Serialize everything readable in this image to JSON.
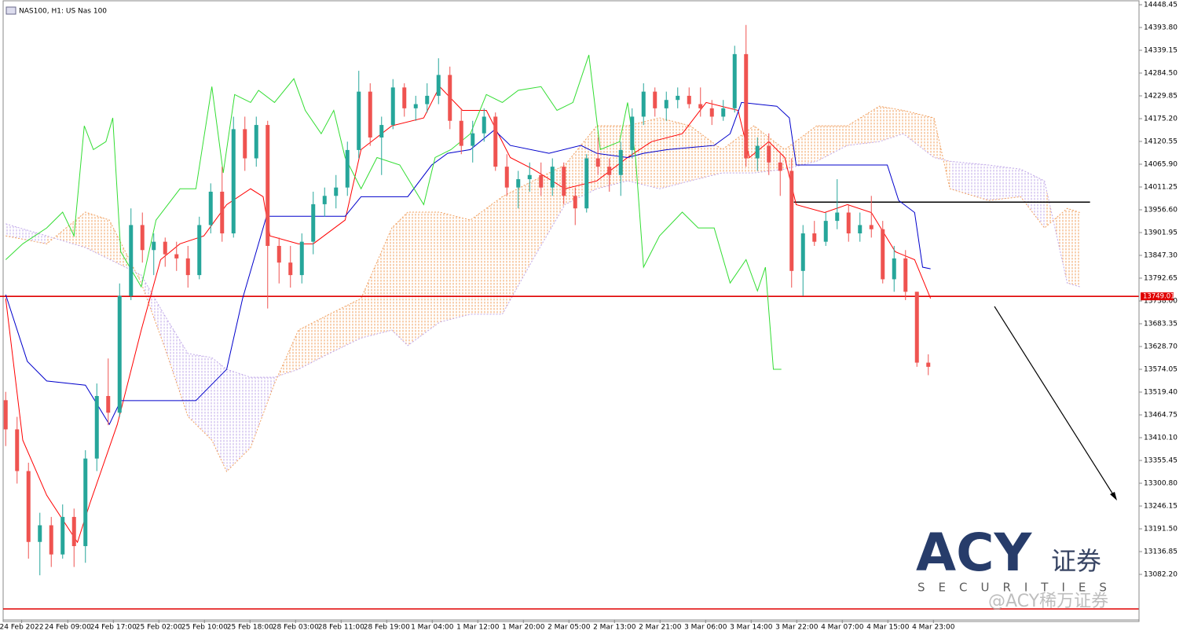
{
  "chart_data": {
    "type": "candlestick",
    "title": "NAS100, H1:  US Nas 100",
    "ylim": [
      13005,
      14448.45
    ],
    "yticks": [
      14448.45,
      {
        "value": 14393.8,
        "label": "14393.80"
      },
      14339.15,
      {
        "value": 14284.5,
        "label": "14284.50"
      },
      14229.85,
      {
        "value": 14175.2,
        "label": "14175.20"
      },
      14120.55,
      {
        "value": 14065.9,
        "label": "14065.90"
      },
      14011.25,
      {
        "value": 13956.6,
        "label": "13956.60"
      },
      13901.95,
      {
        "value": 13847.3,
        "label": "13847.30"
      },
      13792.65,
      {
        "value": 13738,
        "label": "13738.00"
      },
      13683.35,
      {
        "value": 13628.7,
        "label": "13628.70"
      },
      13574.05,
      {
        "value": 13519.4,
        "label": "13519.40"
      },
      13464.75,
      {
        "value": 13410.1,
        "label": "13410.10"
      },
      13355.45,
      {
        "value": 13300.8,
        "label": "13300.80"
      },
      13246.15,
      {
        "value": 13191.5,
        "label": "13191.50"
      },
      13136.85,
      {
        "value": 13082.2,
        "label": "13082.20"
      }
    ],
    "xlim": [
      -0.5,
      99.5
    ],
    "xticks": [
      {
        "value": 1.4,
        "label": "24 Feb 2022"
      },
      {
        "value": 5.45,
        "label": "24 Feb 09:00"
      },
      {
        "value": 9.45,
        "label": "24 Feb 17:00"
      },
      {
        "value": 13.45,
        "label": "25 Feb 02:00"
      },
      {
        "value": 17.45,
        "label": "25 Feb 10:00"
      },
      {
        "value": 21.45,
        "label": "25 Feb 18:00"
      },
      {
        "value": 25.45,
        "label": "28 Feb 03:00"
      },
      {
        "value": 29.45,
        "label": "28 Feb 11:00"
      },
      {
        "value": 33.45,
        "label": "28 Feb 19:00"
      },
      {
        "value": 37.45,
        "label": "1 Mar 04:00"
      },
      {
        "value": 41.45,
        "label": "1 Mar 12:00"
      },
      {
        "value": 45.45,
        "label": "1 Mar 20:00"
      },
      {
        "value": 49.45,
        "label": "2 Mar 05:00"
      },
      {
        "value": 53.45,
        "label": "2 Mar 13:00"
      },
      {
        "value": 57.45,
        "label": "2 Mar 21:00"
      },
      {
        "value": 61.45,
        "label": "3 Mar 06:00"
      },
      {
        "value": 65.45,
        "label": "3 Mar 14:00"
      },
      {
        "value": 69.45,
        "label": "3 Mar 22:00"
      },
      {
        "value": 73.45,
        "label": "4 Mar 07:00"
      },
      {
        "value": 77.45,
        "label": "4 Mar 15:00"
      },
      {
        "value": 81.45,
        "label": "4 Mar 23:00"
      }
    ],
    "up_color": "#26a69a",
    "down_color": "#ef5350",
    "open": [
      13500,
      13430,
      13330,
      13160,
      13200,
      13130,
      13220,
      13150,
      13360,
      13510,
      13470,
      13750,
      13920,
      13860,
      13880,
      13850,
      13840,
      13800,
      13920,
      14000,
      13900,
      14150,
      14080,
      14160,
      13870,
      13830,
      13800,
      13880,
      13970,
      13990,
      14010,
      14100,
      14240,
      14130,
      14160,
      14250,
      14200,
      14210,
      14230,
      14280,
      14170,
      14110,
      14140,
      14180,
      14060,
      14010,
      14030,
      14040,
      14010,
      14060,
      13990,
      13960,
      14080,
      14060,
      14040,
      14100,
      14180,
      14240,
      14200,
      14220,
      14230,
      14210,
      14200,
      14180,
      14200,
      14330,
      14080,
      14110,
      14070,
      14050,
      13810,
      13900,
      13880,
      13930,
      13950,
      13900,
      13920,
      13910,
      13790,
      13840,
      13760,
      13590
    ],
    "high": [
      13520,
      13460,
      13350,
      13230,
      13220,
      13250,
      13240,
      13380,
      13540,
      13600,
      13780,
      13960,
      13950,
      13900,
      13890,
      13880,
      13870,
      13940,
      14020,
      14060,
      14180,
      14180,
      14180,
      14170,
      13890,
      13870,
      13900,
      14000,
      14010,
      14040,
      14120,
      14290,
      14260,
      14180,
      14270,
      14260,
      14230,
      14260,
      14320,
      14300,
      14200,
      14170,
      14200,
      14190,
      14090,
      14050,
      14070,
      14070,
      14080,
      14070,
      14010,
      14090,
      14130,
      14080,
      14120,
      14200,
      14260,
      14250,
      14240,
      14250,
      14250,
      14250,
      14220,
      14220,
      14350,
      14400,
      14130,
      14140,
      14090,
      14080,
      13920,
      13930,
      13950,
      14030,
      13970,
      13950,
      13990,
      13930,
      13870,
      13860,
      13760,
      13610
    ],
    "low": [
      13390,
      13300,
      13120,
      13080,
      13100,
      13120,
      13100,
      13110,
      13330,
      13440,
      13460,
      13740,
      13830,
      13800,
      13820,
      13810,
      13770,
      13790,
      13900,
      13880,
      13890,
      14050,
      14060,
      13720,
      13780,
      13770,
      13780,
      13850,
      13940,
      13960,
      13990,
      14080,
      14110,
      14040,
      14150,
      14180,
      14170,
      14190,
      14210,
      14150,
      14090,
      14070,
      14120,
      14050,
      13990,
      13960,
      14000,
      13990,
      13990,
      13970,
      13920,
      13950,
      14040,
      14000,
      13990,
      14080,
      14160,
      14180,
      14170,
      14200,
      14200,
      14180,
      14160,
      14170,
      14190,
      14060,
      14050,
      14040,
      13990,
      13770,
      13750,
      13870,
      13870,
      13910,
      13880,
      13880,
      13890,
      13780,
      13760,
      13740,
      13580,
      13560
    ],
    "close": [
      13430,
      13330,
      13160,
      13200,
      13130,
      13220,
      13150,
      13360,
      13510,
      13470,
      13750,
      13920,
      13860,
      13880,
      13850,
      13840,
      13800,
      13920,
      14000,
      13900,
      14150,
      14080,
      14160,
      13870,
      13830,
      13800,
      13880,
      13970,
      13990,
      14010,
      14100,
      14240,
      14130,
      14160,
      14250,
      14200,
      14210,
      14230,
      14280,
      14170,
      14110,
      14140,
      14180,
      14060,
      14010,
      14030,
      14040,
      14010,
      14060,
      13990,
      13960,
      14080,
      14060,
      14040,
      14100,
      14180,
      14240,
      14200,
      14220,
      14230,
      14210,
      14200,
      14180,
      14200,
      14330,
      14080,
      14110,
      14070,
      14050,
      13810,
      13900,
      13880,
      13930,
      13950,
      13900,
      13920,
      13910,
      13790,
      13840,
      13760,
      13590,
      13580
    ],
    "lines": [
      {
        "color": "#ff0000",
        "x": [
          0,
          1.5,
          3.6,
          6.3,
          7.4,
          9.8,
          11.9,
          13.6,
          15.3,
          17.4,
          19.4,
          21.5,
          22.6,
          23.2,
          25.7,
          27,
          29.8,
          31.2,
          33.9,
          36.7,
          38.1,
          40.1,
          42.2,
          44.3,
          46.3,
          49.1,
          51.9,
          54.6,
          56.7,
          59.4,
          61.5,
          64.3,
          65.3,
          67,
          68.4,
          69.4,
          71.9,
          73.9,
          76,
          78.1,
          79.8,
          81.2
        ],
        "values": [
          13744,
          13404,
          13272,
          13159,
          13253,
          13442,
          13668,
          13837,
          13875,
          13894,
          13969,
          14007,
          13988,
          13894,
          13875,
          13875,
          13932,
          14101,
          14158,
          14177,
          14252,
          14195,
          14195,
          14082,
          14054,
          14007,
          14026,
          14082,
          14120,
          14139,
          14214,
          14195,
          14082,
          14120,
          14082,
          13969,
          13950,
          13969,
          13950,
          13856,
          13837,
          13744
        ]
      },
      {
        "color": "#0000cc",
        "x": [
          0,
          1.9,
          3.6,
          7,
          9.1,
          10.1,
          16.7,
          19.4,
          20.8,
          22.9,
          29.8,
          31.2,
          35.3,
          37.4,
          38.8,
          40.8,
          42.9,
          44.3,
          47.7,
          50.5,
          51.9,
          54.6,
          56,
          58.1,
          62.2,
          63.6,
          64.6,
          67.7,
          68.8,
          69.4,
          77.4,
          78.4,
          79.8,
          80.5,
          81.2
        ],
        "values": [
          13753,
          13593,
          13546,
          13536,
          13442,
          13499,
          13499,
          13574,
          13744,
          13941,
          13941,
          13988,
          13988,
          14064,
          14092,
          14101,
          14148,
          14111,
          14092,
          14111,
          14092,
          14082,
          14092,
          14101,
          14111,
          14139,
          14214,
          14205,
          14177,
          14064,
          14064,
          13979,
          13950,
          13819,
          13815
        ]
      },
      {
        "color": "#33dd33",
        "x": [
          0,
          1.5,
          3.6,
          5,
          6,
          6.9,
          7.7,
          8.8,
          9.4,
          10.1,
          11.9,
          13.2,
          15.3,
          16.7,
          18.1,
          19.1,
          20.1,
          21.5,
          22.2,
          23.6,
          25.3,
          26.3,
          27.7,
          28.8,
          29.8,
          31.2,
          32.6,
          34.6,
          36.7,
          37.7,
          39.1,
          40.8,
          42.2,
          43.6,
          45,
          47,
          48.4,
          49.8,
          51.2,
          52.2,
          53.9,
          54.6,
          55.3,
          56,
          57.4,
          59.4,
          60.8,
          62.2,
          63.6,
          65,
          66,
          66.7,
          67.4,
          68.1
        ],
        "values": [
          13837,
          13875,
          13913,
          13951,
          13894,
          14158,
          14101,
          14120,
          14177,
          13856,
          13772,
          13932,
          14007,
          14007,
          14252,
          14045,
          14233,
          14214,
          14243,
          14214,
          14271,
          14195,
          14139,
          14195,
          14082,
          14007,
          14082,
          14064,
          13969,
          14082,
          14101,
          14139,
          14233,
          14214,
          14243,
          14252,
          14195,
          14214,
          14328,
          14101,
          14120,
          14214,
          14082,
          13819,
          13894,
          13951,
          13913,
          13913,
          13781,
          13837,
          13762,
          13819,
          13574,
          13574
        ]
      }
    ],
    "cloud": {
      "colors": [
        "#f0a060",
        "#c0a8e8"
      ],
      "x": [
        0,
        3.6,
        7,
        9.1,
        11.9,
        13.9,
        16,
        18.1,
        19.4,
        21.5,
        23.6,
        25.7,
        28.4,
        31.2,
        33.9,
        35.3,
        38.1,
        40.8,
        43.6,
        46.3,
        49.1,
        51.9,
        54.6,
        57.4,
        60.1,
        62.9,
        65.7,
        68.4,
        71.2,
        73.9,
        76.7,
        78.8,
        81.5,
        82.9,
        86.3,
        89.1,
        91.2,
        93.2,
        94.3
      ],
      "span_a": [
        13894,
        13875,
        13951,
        13932,
        13781,
        13631,
        13461,
        13404,
        13329,
        13386,
        13540,
        13668,
        13706,
        13744,
        13913,
        13951,
        13951,
        13932,
        13988,
        14026,
        14064,
        14158,
        14158,
        14177,
        14158,
        14101,
        14158,
        14101,
        14158,
        14158,
        14205,
        14195,
        14177,
        14007,
        13979,
        13988,
        13913,
        13960,
        13950
      ],
      "span_b": [
        13923,
        13894,
        13866,
        13838,
        13800,
        13706,
        13612,
        13602,
        13574,
        13555,
        13555,
        13574,
        13612,
        13649,
        13668,
        13631,
        13687,
        13706,
        13706,
        13838,
        13969,
        14007,
        14026,
        14007,
        14026,
        14045,
        14045,
        14054,
        14073,
        14111,
        14120,
        14139,
        14082,
        14073,
        14064,
        14054,
        14026,
        13781,
        13772
      ]
    },
    "hlines": [
      {
        "value": 13749.01,
        "color": "#e00000",
        "x": [
          -0.5,
          99.5
        ]
      },
      {
        "value": 13975,
        "color": "#000000",
        "x": [
          69.2,
          95.2
        ]
      }
    ],
    "watermark": {
      "brand": "ACY",
      "cn": "证券",
      "sub": "SECURITIES",
      "handle": "@ACY稀万证券"
    }
  }
}
